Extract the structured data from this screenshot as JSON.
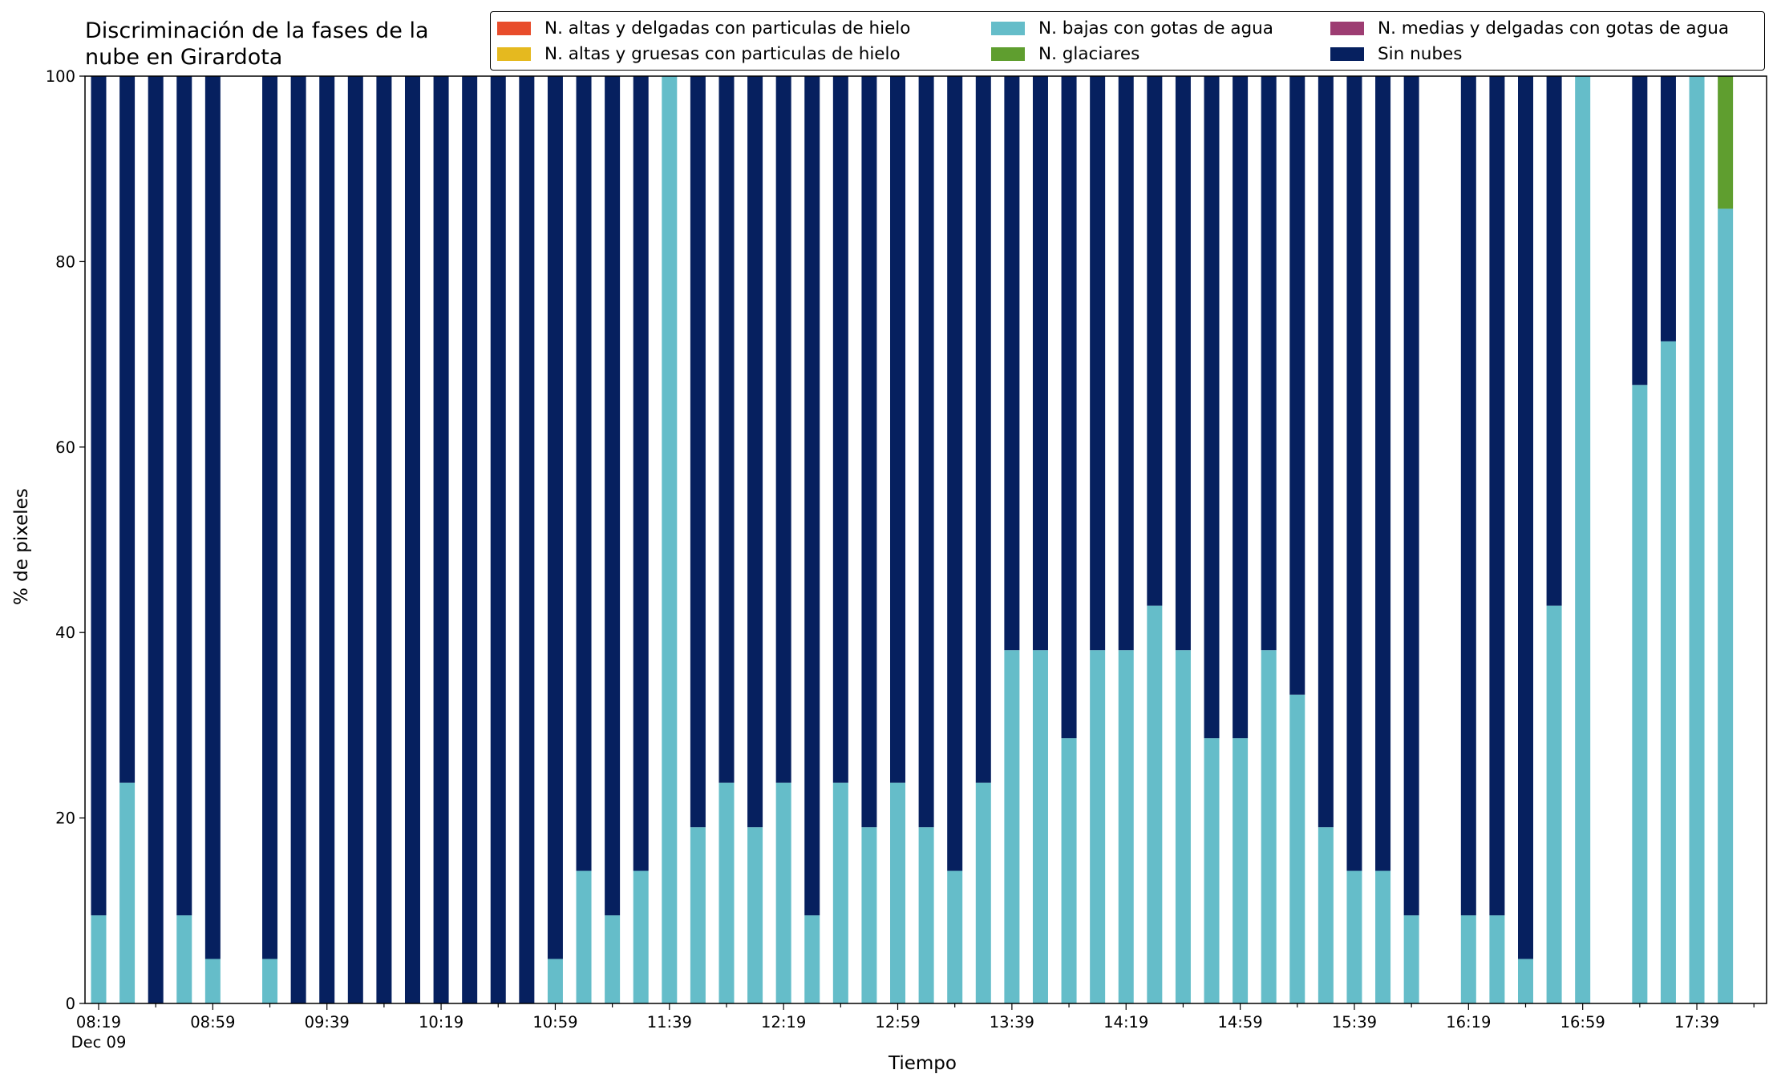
{
  "chart_data": {
    "type": "bar",
    "stacked": true,
    "title": "Discriminación de la fases de la\nnube en Girardota",
    "xlabel": "Tiempo",
    "ylabel": "% de pixeles",
    "ylim": [
      0,
      100
    ],
    "yticks": [
      0,
      20,
      40,
      60,
      80,
      100
    ],
    "grid": false,
    "legend_position": "top",
    "legend": [
      {
        "name": "N. altas y delgadas con particulas de hielo",
        "color": "#e84c2b"
      },
      {
        "name": "N. altas y gruesas con particulas de hielo",
        "color": "#e5b91f"
      },
      {
        "name": "N. bajas con gotas de agua",
        "color": "#65bdc9"
      },
      {
        "name": "N. glaciares",
        "color": "#5f9e2f"
      },
      {
        "name": "N. medias y delgadas con gotas de agua",
        "color": "#9d3d72"
      },
      {
        "name": "Sin nubes",
        "color": "#06205f"
      }
    ],
    "x_tick_labels": [
      "08:19\nDec 09",
      "08:59",
      "09:39",
      "10:19",
      "10:59",
      "11:39",
      "12:19",
      "12:59",
      "13:39",
      "14:19",
      "14:59",
      "15:39",
      "16:19",
      "16:59",
      "17:39"
    ],
    "categories": [
      "08:19",
      "08:29",
      "08:39",
      "08:49",
      "08:59",
      "09:09",
      "09:19",
      "09:29",
      "09:39",
      "09:49",
      "09:59",
      "10:09",
      "10:19",
      "10:29",
      "10:39",
      "10:49",
      "10:59",
      "11:09",
      "11:19",
      "11:29",
      "11:39",
      "11:49",
      "11:59",
      "12:09",
      "12:19",
      "12:29",
      "12:39",
      "12:49",
      "12:59",
      "13:09",
      "13:19",
      "13:29",
      "13:39",
      "13:49",
      "13:59",
      "14:09",
      "14:19",
      "14:29",
      "14:39",
      "14:49",
      "14:59",
      "15:09",
      "15:19",
      "15:29",
      "15:39",
      "15:49",
      "15:59",
      "16:09",
      "16:19",
      "16:29",
      "16:39",
      "16:49",
      "16:59",
      "17:09",
      "17:19",
      "17:29",
      "17:39",
      "17:49"
    ],
    "series": [
      {
        "name": "N. bajas con gotas de agua",
        "color": "#65bdc9",
        "values": [
          9.5,
          23.8,
          0,
          9.5,
          4.8,
          null,
          4.8,
          0,
          0,
          0,
          0,
          0,
          0,
          0,
          0,
          0,
          4.8,
          14.3,
          9.5,
          14.3,
          100,
          19,
          23.8,
          19,
          23.8,
          9.5,
          23.8,
          19,
          23.8,
          19,
          14.3,
          23.8,
          38.1,
          38.1,
          28.6,
          38.1,
          38.1,
          42.9,
          38.1,
          28.6,
          28.6,
          38.1,
          33.3,
          19,
          14.3,
          14.3,
          9.5,
          null,
          9.5,
          9.5,
          4.8,
          42.9,
          100,
          null,
          66.7,
          71.4,
          100,
          85.7
        ]
      },
      {
        "name": "N. glaciares",
        "color": "#5f9e2f",
        "values": [
          0,
          0,
          0,
          0,
          0,
          null,
          0,
          0,
          0,
          0,
          0,
          0,
          0,
          0,
          0,
          0,
          0,
          0,
          0,
          0,
          0,
          0,
          0,
          0,
          0,
          0,
          0,
          0,
          0,
          0,
          0,
          0,
          0,
          0,
          0,
          0,
          0,
          0,
          0,
          0,
          0,
          0,
          0,
          0,
          0,
          0,
          0,
          null,
          0,
          0,
          0,
          0,
          0,
          null,
          0,
          0,
          0,
          14.3
        ]
      },
      {
        "name": "Sin nubes",
        "color": "#06205f",
        "values": [
          90.5,
          76.2,
          100,
          90.5,
          95.2,
          null,
          95.2,
          100,
          100,
          100,
          100,
          100,
          100,
          100,
          100,
          100,
          95.2,
          85.7,
          90.5,
          85.7,
          0,
          81,
          76.2,
          81,
          76.2,
          90.5,
          76.2,
          81,
          76.2,
          81,
          85.7,
          76.2,
          61.9,
          61.9,
          71.4,
          61.9,
          61.9,
          57.1,
          61.9,
          71.4,
          71.4,
          61.9,
          66.7,
          81,
          85.7,
          85.7,
          90.5,
          null,
          90.5,
          90.5,
          95.2,
          57.1,
          0,
          null,
          33.3,
          28.6,
          0,
          0
        ]
      }
    ]
  }
}
